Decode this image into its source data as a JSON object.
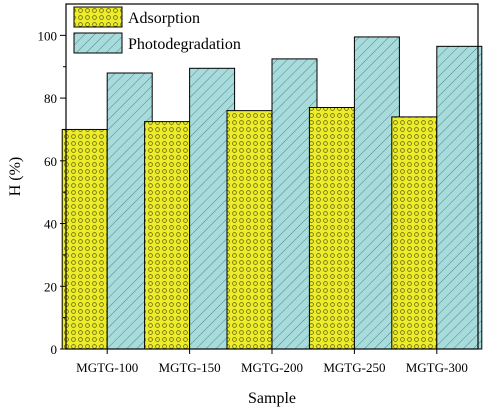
{
  "chart_data": {
    "type": "bar",
    "categories": [
      "MGTG-100",
      "MGTG-150",
      "MGTG-200",
      "MGTG-250",
      "MGTG-300"
    ],
    "series": [
      {
        "name": "Adsorption",
        "values": [
          70,
          72.5,
          76,
          77,
          74
        ],
        "color": "#ecec2a",
        "pattern": "dots"
      },
      {
        "name": "Photodegradation",
        "values": [
          88,
          89.5,
          92.5,
          99.5,
          96.5
        ],
        "color": "#a8dcdc",
        "pattern": "hatch"
      }
    ],
    "xlabel": "Sample",
    "ylabel": "H (%)",
    "ylim": [
      0,
      110
    ],
    "yticks": [
      0,
      20,
      40,
      60,
      80,
      100
    ],
    "legend": "top-left",
    "grid": false
  }
}
